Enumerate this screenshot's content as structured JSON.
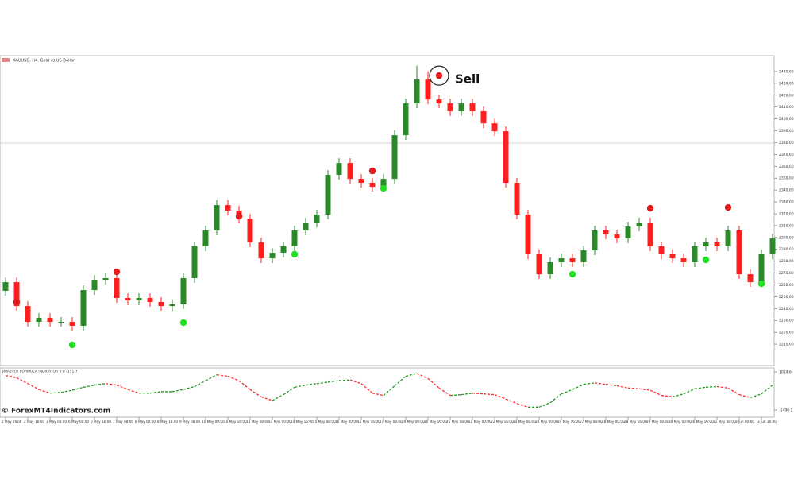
{
  "header": "XAUUSD, H4: Gold vs US Dollar",
  "watermark": "© ForexMT4Indicators.com",
  "chart_data": [
    {
      "type": "candlestick",
      "categories": [
        "2 May 2024",
        null,
        "2 May 16:00",
        null,
        "3 May 08:00",
        null,
        "6 May 00:00",
        null,
        "6 May 16:00",
        null,
        "7 May 08:00",
        null,
        "8 May 00:00",
        null,
        "8 May 16:00",
        null,
        "9 May 08:00",
        null,
        "10 May 00:00",
        null,
        "10 May 16:00",
        null,
        "13 May 08:00",
        null,
        "14 May 00:00",
        null,
        "14 May 16:00",
        null,
        "15 May 08:00",
        null,
        "16 May 00:00",
        null,
        "16 May 16:00",
        null,
        "17 May 08:00",
        null,
        "20 May 00:00",
        null,
        "20 May 16:00",
        null,
        "21 May 08:00",
        null,
        "22 May 00:00",
        null,
        "22 May 16:00",
        null,
        "23 May 08:00",
        null,
        "24 May 00:00",
        null,
        "24 May 16:00",
        null,
        "27 May 08:00",
        null,
        "28 May 00:00",
        null,
        "28 May 16:00",
        null,
        "29 May 08:00",
        null,
        "30 May 00:00",
        null,
        "30 May 16:00",
        null,
        "31 May 08:00",
        null,
        "3 Jun 00:00",
        null,
        "3 Jun 16:00",
        null
      ],
      "open": [
        2255.0,
        2262.3,
        2242.2,
        2228.8,
        2232.2,
        2228.8,
        2228.8,
        2225.5,
        2255.6,
        2264.3,
        2265.7,
        2248.9,
        2246.9,
        2248.9,
        2245.6,
        2242.2,
        2243.6,
        2265.7,
        2292.5,
        2305.9,
        2327.3,
        2322.6,
        2315.9,
        2295.8,
        2282.4,
        2287.1,
        2292.5,
        2305.9,
        2312.6,
        2319.3,
        2352.8,
        2362.8,
        2349.4,
        2346.1,
        2342.7,
        2349.4,
        2386.3,
        2413.1,
        2433.2,
        2416.4,
        2413.1,
        2406.4,
        2413.1,
        2406.4,
        2396.3,
        2389.6,
        2346.1,
        2319.3,
        2285.8,
        2269.0,
        2279.1,
        2282.4,
        2279.1,
        2289.1,
        2305.9,
        2302.5,
        2299.2,
        2309.2,
        2312.6,
        2292.5,
        2285.8,
        2282.4,
        2279.1,
        2292.5,
        2295.8,
        2292.5,
        2305.9,
        2269.0,
        2262.3,
        2285.8
      ],
      "high": [
        2266.3,
        2266.3,
        2246.2,
        2236.2,
        2236.2,
        2232.8,
        2232.8,
        2259.6,
        2268.3,
        2269.7,
        2269.7,
        2252.9,
        2252.9,
        2252.9,
        2249.6,
        2247.6,
        2269.7,
        2296.5,
        2309.9,
        2331.3,
        2331.3,
        2326.6,
        2319.9,
        2299.8,
        2291.1,
        2296.5,
        2309.9,
        2316.6,
        2323.3,
        2356.8,
        2366.8,
        2366.8,
        2353.4,
        2350.1,
        2353.4,
        2390.3,
        2417.1,
        2445.0,
        2440.2,
        2420.4,
        2417.1,
        2417.1,
        2417.1,
        2410.4,
        2400.3,
        2393.6,
        2350.1,
        2323.3,
        2289.8,
        2283.1,
        2286.4,
        2286.4,
        2293.1,
        2309.9,
        2309.9,
        2306.5,
        2313.2,
        2316.6,
        2316.6,
        2296.5,
        2289.8,
        2286.4,
        2296.5,
        2299.8,
        2299.8,
        2309.9,
        2309.9,
        2273.0,
        2289.8,
        2303.2
      ],
      "low": [
        2251.0,
        2238.2,
        2224.8,
        2224.8,
        2224.8,
        2224.8,
        2221.5,
        2221.5,
        2251.6,
        2260.3,
        2244.9,
        2242.9,
        2242.9,
        2241.6,
        2238.2,
        2238.2,
        2239.6,
        2261.7,
        2288.5,
        2301.9,
        2318.6,
        2311.9,
        2291.8,
        2278.4,
        2278.4,
        2283.1,
        2288.5,
        2301.9,
        2308.6,
        2315.3,
        2348.8,
        2345.4,
        2342.1,
        2338.7,
        2338.7,
        2345.4,
        2382.3,
        2409.1,
        2412.4,
        2409.1,
        2402.4,
        2402.4,
        2402.4,
        2392.3,
        2385.6,
        2342.1,
        2315.3,
        2281.8,
        2265.0,
        2265.0,
        2275.1,
        2275.1,
        2275.1,
        2285.1,
        2298.5,
        2295.2,
        2295.2,
        2305.2,
        2288.5,
        2281.8,
        2278.4,
        2275.1,
        2275.1,
        2288.5,
        2288.5,
        2288.5,
        2265.0,
        2258.3,
        2258.3,
        2281.8
      ],
      "close": [
        2262.3,
        2242.2,
        2228.8,
        2232.2,
        2228.8,
        2228.8,
        2225.5,
        2255.6,
        2264.3,
        2265.7,
        2248.9,
        2246.9,
        2248.9,
        2245.6,
        2242.2,
        2243.6,
        2265.7,
        2292.5,
        2305.9,
        2327.3,
        2322.6,
        2315.9,
        2295.8,
        2282.4,
        2287.1,
        2292.5,
        2305.9,
        2312.6,
        2319.3,
        2352.8,
        2362.8,
        2349.4,
        2346.1,
        2342.7,
        2349.4,
        2386.3,
        2413.1,
        2433.2,
        2416.4,
        2413.1,
        2406.4,
        2413.1,
        2406.4,
        2396.3,
        2389.6,
        2346.1,
        2319.3,
        2285.8,
        2269.0,
        2279.1,
        2282.4,
        2279.1,
        2289.1,
        2305.9,
        2302.5,
        2299.2,
        2309.2,
        2312.6,
        2292.5,
        2285.8,
        2282.4,
        2279.1,
        2292.5,
        2295.8,
        2292.5,
        2305.9,
        2269.0,
        2262.3,
        2285.8,
        2299.2
      ],
      "up_color": "#2a8a2a",
      "down_color": "#ff1f1f",
      "signals": [
        {
          "at": 1,
          "value": 2245.6,
          "color": "#e31b1b"
        },
        {
          "at": 10,
          "value": 2271.0,
          "color": "#e31b1b"
        },
        {
          "at": 21,
          "value": 2317.9,
          "color": "#e31b1b"
        },
        {
          "at": 33,
          "value": 2356.1,
          "color": "#e31b1b"
        },
        {
          "at": 39,
          "value": 2436.5,
          "color": "#e31b1b"
        },
        {
          "at": 58,
          "value": 2324.6,
          "color": "#e31b1b"
        },
        {
          "at": 65,
          "value": 2325.3,
          "color": "#e31b1b"
        },
        {
          "at": 6,
          "value": 2209.4,
          "color": "#22e022"
        },
        {
          "at": 16,
          "value": 2228.1,
          "color": "#22e022"
        },
        {
          "at": 26,
          "value": 2285.8,
          "color": "#22e022"
        },
        {
          "at": 34,
          "value": 2341.4,
          "color": "#22e022"
        },
        {
          "at": 51,
          "value": 2269.0,
          "color": "#22e022"
        },
        {
          "at": 63,
          "value": 2281.1,
          "color": "#22e022"
        },
        {
          "at": 68,
          "value": 2261.0,
          "color": "#22e022"
        }
      ],
      "annotation": {
        "text": "Sell",
        "at": 39
      },
      "price_line": 2379.6,
      "ylim": [
        2200,
        2450
      ],
      "yticks": [
        {
          "value": 2210,
          "label": "2210.00"
        },
        {
          "value": 2220,
          "label": "2220.00"
        },
        {
          "value": 2230,
          "label": "2230.00"
        },
        {
          "value": 2240,
          "label": "2240.00"
        },
        {
          "value": 2250,
          "label": "2250.00"
        },
        {
          "value": 2260,
          "label": "2260.00"
        },
        {
          "value": 2270,
          "label": "2270.00"
        },
        {
          "value": 2280,
          "label": "2280.00"
        },
        {
          "value": 2290,
          "label": "2290.00"
        },
        {
          "value": 2300,
          "label": "2300.00"
        },
        {
          "value": 2310,
          "label": "2310.00"
        },
        {
          "value": 2320,
          "label": "2320.00"
        },
        {
          "value": 2330,
          "label": "2330.00"
        },
        {
          "value": 2340,
          "label": "2340.00"
        },
        {
          "value": 2350,
          "label": "2350.00"
        },
        {
          "value": 2360,
          "label": "2360.00"
        },
        {
          "value": 2370,
          "label": "2370.00"
        },
        {
          "value": 2380,
          "label": "2380.00"
        },
        {
          "value": 2390,
          "label": "2390.00"
        },
        {
          "value": 2400,
          "label": "2400.00"
        },
        {
          "value": 2410,
          "label": "2410.00"
        },
        {
          "value": 2420,
          "label": "2420.00"
        },
        {
          "value": 2430,
          "label": "2430.00"
        },
        {
          "value": 2440,
          "label": "2440.00"
        }
      ]
    },
    {
      "type": "line",
      "title": "$MASTER FORMULA INDICATOR 0.8 -151.7",
      "values": [
        774,
        630,
        244,
        -141,
        -382,
        -334,
        -190,
        3,
        148,
        244,
        148,
        -141,
        -382,
        -382,
        -286,
        -286,
        -141,
        51,
        437,
        822,
        726,
        437,
        -141,
        -623,
        -864,
        -479,
        3,
        148,
        244,
        340,
        437,
        485,
        244,
        -382,
        -527,
        100,
        726,
        918,
        581,
        -45,
        -527,
        -479,
        -382,
        -431,
        -479,
        -768,
        -1057,
        -1297,
        -1297,
        -1009,
        -431,
        -141,
        196,
        292,
        196,
        100,
        -45,
        -93,
        -190,
        -527,
        -623,
        -431,
        -93,
        3,
        51,
        -45,
        -479,
        -671,
        -431,
        148
      ],
      "up_color": "#1f9a1f",
      "down_color": "#ff2a2a",
      "ylim": [
        -1490.1,
        1014.6
      ],
      "yticks": [
        1014.6,
        -1490.1
      ]
    }
  ]
}
